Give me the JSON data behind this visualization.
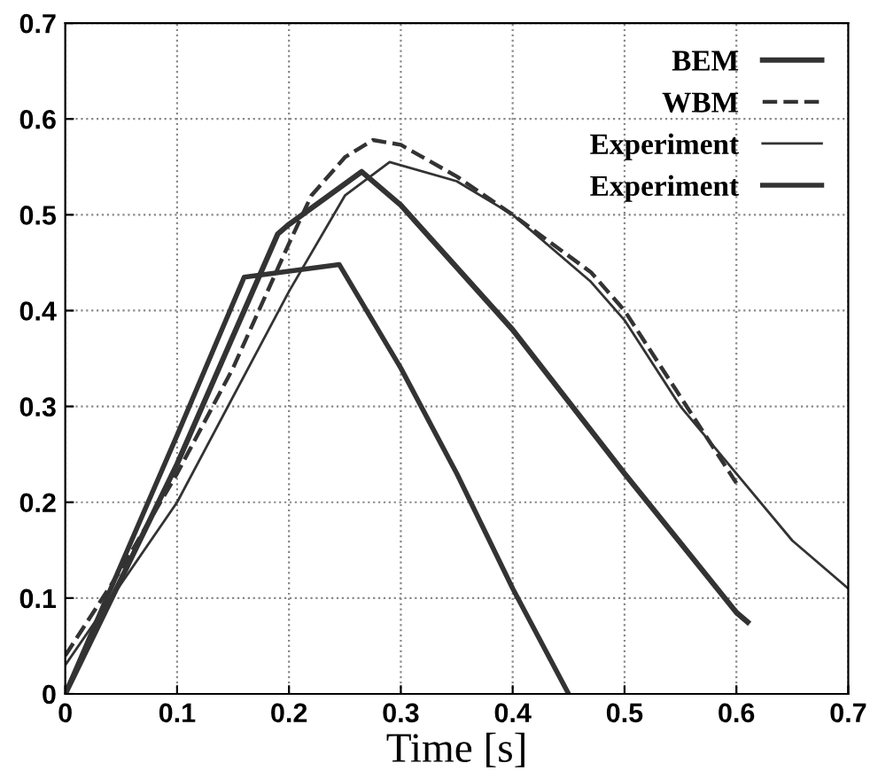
{
  "chart_data": {
    "type": "line",
    "xlabel": "Time [s]",
    "xlim": [
      0,
      0.7
    ],
    "ylim": [
      0,
      0.7
    ],
    "xticks": [
      0,
      0.1,
      0.2,
      0.3,
      0.4,
      0.5,
      0.6,
      0.7
    ],
    "yticks": [
      0,
      0.1,
      0.2,
      0.3,
      0.4,
      0.5,
      0.6,
      0.7
    ],
    "grid": true,
    "legend": "top right",
    "marker": "none",
    "series": [
      {
        "name": "BEM",
        "color": "#333333",
        "line_style": "solid",
        "x": [
          0,
          0.1,
          0.19,
          0.2,
          0.265,
          0.3,
          0.4,
          0.5,
          0.6,
          0.61
        ],
        "values": [
          0,
          0.24,
          0.48,
          0.49,
          0.545,
          0.51,
          0.38,
          0.23,
          0.085,
          0.075
        ]
      },
      {
        "name": "WBM",
        "color": "#333333",
        "line_style": "dashed",
        "x": [
          0,
          0.05,
          0.1,
          0.15,
          0.2,
          0.22,
          0.25,
          0.275,
          0.3,
          0.35,
          0.4,
          0.47,
          0.5,
          0.55,
          0.6
        ],
        "values": [
          0.04,
          0.13,
          0.23,
          0.34,
          0.47,
          0.52,
          0.56,
          0.578,
          0.573,
          0.54,
          0.5,
          0.44,
          0.4,
          0.31,
          0.22
        ]
      },
      {
        "name": "Experiment",
        "color": "#333333",
        "line_style": "solid",
        "x": [
          0,
          0.1,
          0.2,
          0.25,
          0.29,
          0.35,
          0.4,
          0.47,
          0.5,
          0.55,
          0.6,
          0.65,
          0.7
        ],
        "values": [
          0.03,
          0.2,
          0.42,
          0.52,
          0.555,
          0.535,
          0.5,
          0.43,
          0.39,
          0.3,
          0.23,
          0.16,
          0.11
        ]
      },
      {
        "name": "Experiment",
        "color": "#333333",
        "line_style": "solid",
        "x": [
          0,
          0.1,
          0.16,
          0.245,
          0.3,
          0.35,
          0.4,
          0.45
        ],
        "values": [
          0,
          0.27,
          0.435,
          0.448,
          0.34,
          0.23,
          0.11,
          0
        ]
      }
    ]
  }
}
